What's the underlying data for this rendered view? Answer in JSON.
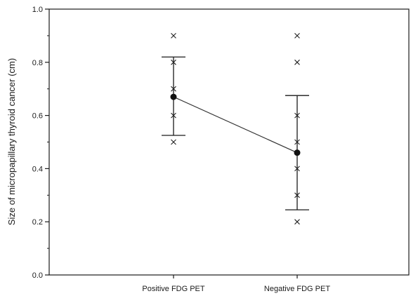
{
  "chart_data": {
    "type": "scatter",
    "title": "",
    "xlabel": "",
    "ylabel": "Size of micropapillary thyroid cancer (cm)",
    "categories": [
      "Positive FDG PET",
      "Negative FDG PET"
    ],
    "ylim": [
      0.0,
      1.0
    ],
    "yticks": [
      "0.0",
      "0.2",
      "0.4",
      "0.6",
      "0.8",
      "1.0"
    ],
    "grid": false,
    "legend": "none",
    "points": [
      {
        "category": "Positive FDG PET",
        "values": [
          0.9,
          0.8,
          0.7,
          0.6,
          0.5
        ]
      },
      {
        "category": "Negative FDG PET",
        "values": [
          0.9,
          0.8,
          0.6,
          0.5,
          0.4,
          0.3,
          0.2
        ]
      }
    ],
    "means": [
      0.67,
      0.46
    ],
    "error_low": [
      0.525,
      0.245
    ],
    "error_high": [
      0.82,
      0.675
    ],
    "colors": {
      "axis": "#1a1a1a",
      "marker": "#222222",
      "line": "#333333"
    }
  }
}
